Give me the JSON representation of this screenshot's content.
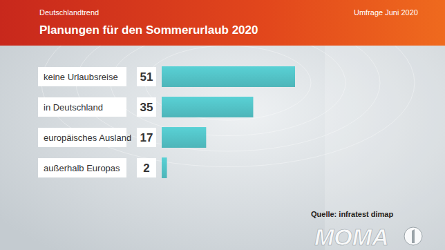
{
  "chart_data": {
    "type": "bar",
    "orientation": "horizontal",
    "title": "Planungen für den Sommerurlaub 2020",
    "annotations": [
      "Deutschlandtrend",
      "Umfrage Juni 2020",
      "Quelle: infratest dimap",
      "MOMA"
    ],
    "categories": [
      "keine Urlaubsreise",
      "in Deutschland",
      "europäisches Ausland",
      "außerhalb Europas"
    ],
    "values": [
      51,
      35,
      17,
      2
    ],
    "color": "#4db5b9",
    "xlim": [
      0,
      51
    ],
    "data_labels": true,
    "tick_labels": false,
    "grid": false
  }
}
